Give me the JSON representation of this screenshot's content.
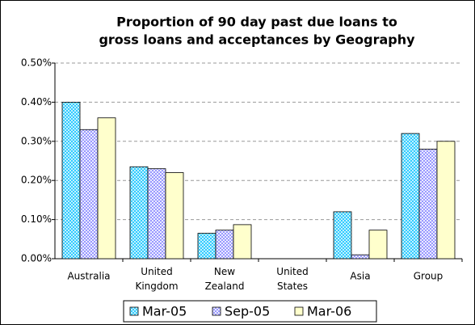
{
  "chart_data": {
    "type": "bar",
    "title": [
      "Proportion of 90 day past due loans to",
      "gross loans and acceptances by Geography"
    ],
    "categories": [
      "Australia",
      "United Kingdom",
      "New Zealand",
      "United States",
      "Asia",
      "Group"
    ],
    "series": [
      {
        "name": "Mar-05",
        "color": "#33ccff",
        "values": [
          0.4,
          0.235,
          0.065,
          0,
          0.12,
          0.32
        ]
      },
      {
        "name": "Sep-05",
        "color": "#9999ff",
        "values": [
          0.33,
          0.23,
          0.073,
          0,
          0.01,
          0.28
        ]
      },
      {
        "name": "Mar-06",
        "color": "#ffffcc",
        "values": [
          0.36,
          0.22,
          0.087,
          0,
          0.073,
          0.3
        ]
      }
    ],
    "ylim": [
      0,
      0.5
    ],
    "yticks": [
      {
        "value": 0,
        "label": "0.00%"
      },
      {
        "value": 0.1,
        "label": "0.10%"
      },
      {
        "value": 0.2,
        "label": "0.20%"
      },
      {
        "value": 0.3,
        "label": "0.30%"
      },
      {
        "value": 0.4,
        "label": "0.40%"
      },
      {
        "value": 0.5,
        "label": "0.50%"
      }
    ],
    "grid": true,
    "legend": "bottom"
  }
}
